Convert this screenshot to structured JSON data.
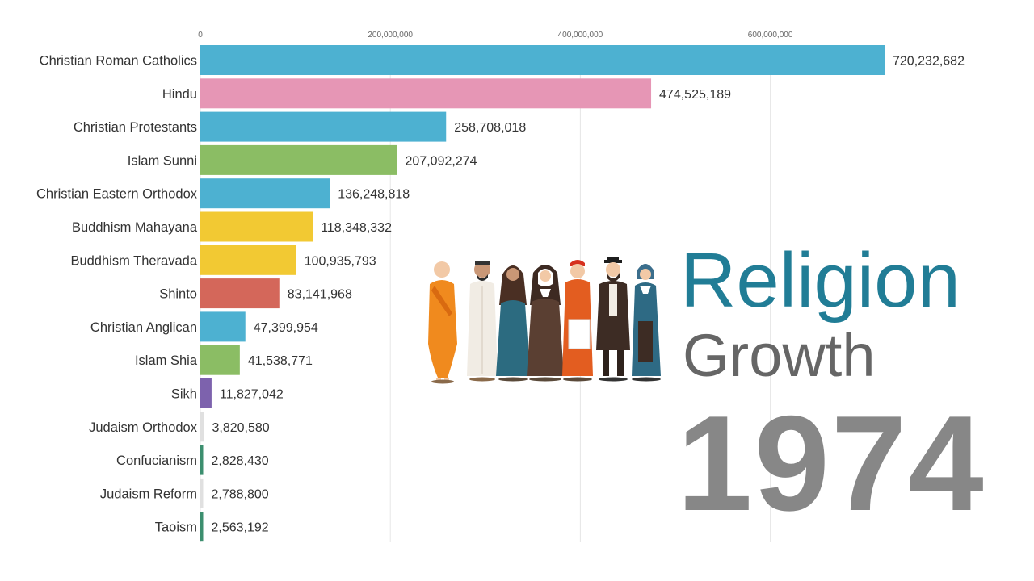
{
  "colors": {
    "christian": "#4db1d1",
    "hindu": "#e696b5",
    "islam": "#8bbd64",
    "buddhism": "#f2c933",
    "shinto": "#d4675a",
    "sikh": "#7d62ad",
    "judaism": "#e0e0e0",
    "confucianism": "#3c8f6f",
    "taoism": "#3c8f6f",
    "title_primary": "#217d96",
    "title_secondary": "#666666",
    "year": "#878787"
  },
  "title": {
    "line1": "Religion",
    "line2": "Growth",
    "year": "1974"
  },
  "illustration": {
    "name": "religious-figures-illustration"
  },
  "chart_data": {
    "type": "bar",
    "orientation": "horizontal",
    "xlim": [
      0,
      730000000
    ],
    "grid": true,
    "ticks": [
      {
        "value": 0,
        "label": "0"
      },
      {
        "value": 200000000,
        "label": "200,000,000"
      },
      {
        "value": 400000000,
        "label": "400,000,000"
      },
      {
        "value": 600000000,
        "label": "600,000,000"
      }
    ],
    "bars": [
      {
        "category": "Christian Roman Catholics",
        "value": 720232682,
        "label": "720,232,682",
        "color": "#4db1d1"
      },
      {
        "category": "Hindu",
        "value": 474525189,
        "label": "474,525,189",
        "color": "#e696b5"
      },
      {
        "category": "Christian Protestants",
        "value": 258708018,
        "label": "258,708,018",
        "color": "#4db1d1"
      },
      {
        "category": "Islam Sunni",
        "value": 207092274,
        "label": "207,092,274",
        "color": "#8bbd64"
      },
      {
        "category": "Christian Eastern Orthodox",
        "value": 136248818,
        "label": "136,248,818",
        "color": "#4db1d1"
      },
      {
        "category": "Buddhism Mahayana",
        "value": 118348332,
        "label": "118,348,332",
        "color": "#f2c933"
      },
      {
        "category": "Buddhism Theravada",
        "value": 100935793,
        "label": "100,935,793",
        "color": "#f2c933"
      },
      {
        "category": "Shinto",
        "value": 83141968,
        "label": "83,141,968",
        "color": "#d4675a"
      },
      {
        "category": "Christian Anglican",
        "value": 47399954,
        "label": "47,399,954",
        "color": "#4db1d1"
      },
      {
        "category": "Islam Shia",
        "value": 41538771,
        "label": "41,538,771",
        "color": "#8bbd64"
      },
      {
        "category": "Sikh",
        "value": 11827042,
        "label": "11,827,042",
        "color": "#7d62ad"
      },
      {
        "category": "Judaism Orthodox",
        "value": 3820580,
        "label": "3,820,580",
        "color": "#e0e0e0"
      },
      {
        "category": "Confucianism",
        "value": 2828430,
        "label": "2,828,430",
        "color": "#3c8f6f"
      },
      {
        "category": "Judaism Reform",
        "value": 2788800,
        "label": "2,788,800",
        "color": "#e0e0e0"
      },
      {
        "category": "Taoism",
        "value": 2563192,
        "label": "2,563,192",
        "color": "#3c8f6f"
      }
    ]
  }
}
